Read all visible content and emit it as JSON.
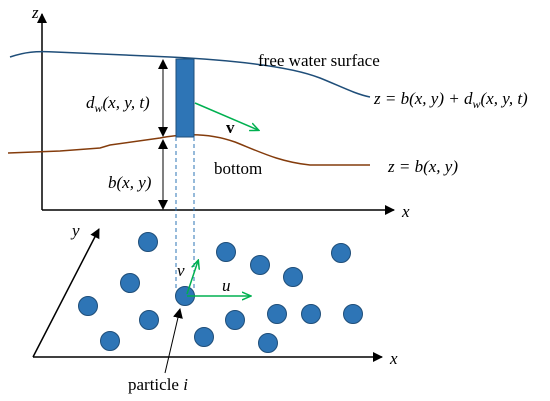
{
  "top_panel": {
    "z_axis_label": "z",
    "x_axis_label": "x",
    "surface_label": "free water surface",
    "depth_label": {
      "main": "d",
      "sub": "w",
      "args": "(x, y, t)"
    },
    "velocity_label": "v",
    "bottom_label": "bottom",
    "bed_label": "b(x, y)",
    "surface_equation": {
      "lhs": "z = b(x, y) + d",
      "sub": "w",
      "args": "(x, y, t)"
    },
    "bottom_equation": "z = b(x, y)"
  },
  "bottom_panel": {
    "y_axis_label": "y",
    "x_axis_label": "x",
    "v_component_label": "v",
    "u_component_label": "u",
    "particle_label": {
      "text": "particle ",
      "index": "i"
    }
  }
}
